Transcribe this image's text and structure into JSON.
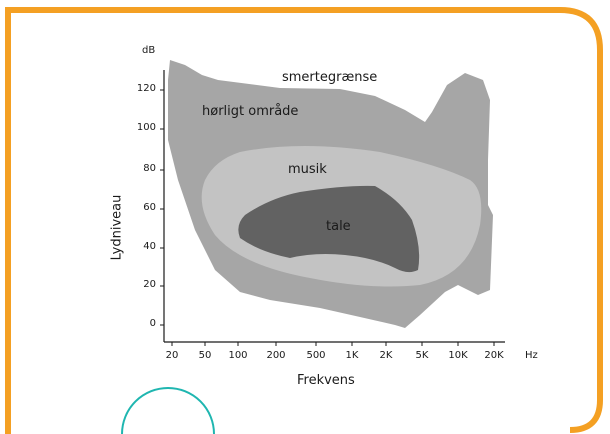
{
  "diagram": {
    "y_unit": "dB",
    "x_unit": "Hz",
    "y_axis_label": "Lydniveau",
    "x_axis_label": "Frekvens",
    "y_ticks": [
      "0",
      "20",
      "40",
      "60",
      "80",
      "100",
      "120"
    ],
    "x_ticks": [
      "20",
      "50",
      "100",
      "200",
      "500",
      "1K",
      "2K",
      "5K",
      "10K",
      "20K"
    ],
    "regions": {
      "pain_threshold": "smertegrænse",
      "audible": "hørligt område",
      "music": "musik",
      "speech": "tale"
    },
    "colors": {
      "frame": "#f4a023",
      "audible_fill": "#a6a6a6",
      "music_fill": "#c3c3c3",
      "speech_fill": "#626262",
      "decor_circle": "#1fb6b0"
    }
  }
}
